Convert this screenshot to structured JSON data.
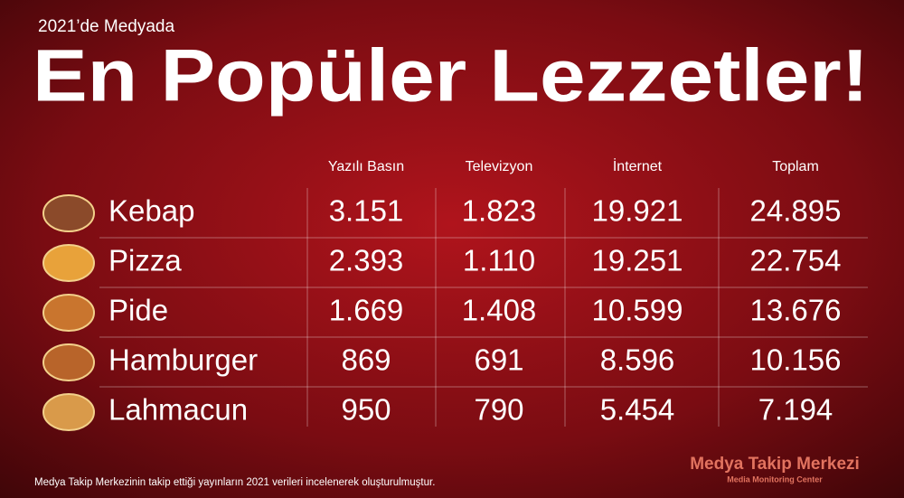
{
  "header": {
    "subtitle": "2021’de Medyada",
    "title": "En Popüler Lezzetler!"
  },
  "table": {
    "columns": [
      "Yazılı Basın",
      "Televizyon",
      "İnternet",
      "Toplam"
    ],
    "rows": [
      [
        "Kebap",
        "3.151",
        "1.823",
        "19.921",
        "24.895"
      ],
      [
        "Pizza",
        "2.393",
        "1.110",
        "19.251",
        "22.754"
      ],
      [
        "Pide",
        "1.669",
        "1.408",
        "10.599",
        "13.676"
      ],
      [
        "Hamburger",
        "869",
        "691",
        "8.596",
        "10.156"
      ],
      [
        "Lahmacun",
        "950",
        "790",
        "5.454",
        "7.194"
      ]
    ]
  },
  "footer": {
    "note": "Medya Takip Merkezinin takip ettiği yayınların 2021 verileri incelenerek oluşturulmuştur.",
    "logo": "Medya Takip Merkezi",
    "logo_sub": "Media Monitoring Center"
  }
}
